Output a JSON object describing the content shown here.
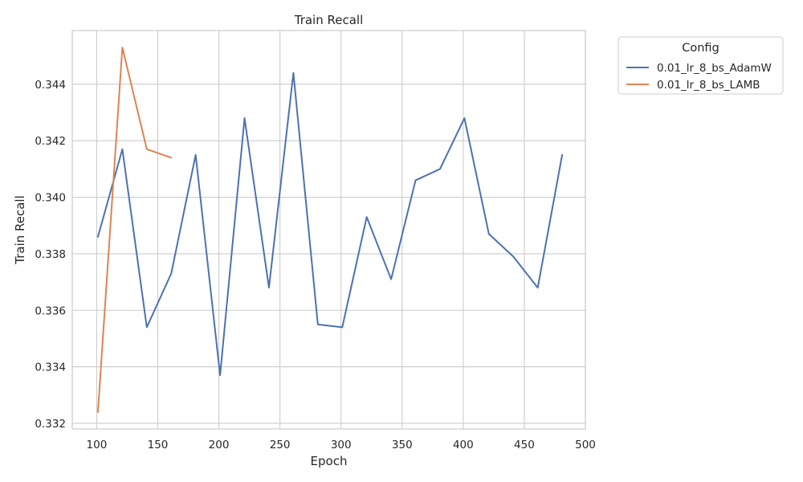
{
  "chart_data": {
    "type": "line",
    "title": "Train Recall",
    "xlabel": "Epoch",
    "ylabel": "Train Recall",
    "xlim": [
      80,
      500
    ],
    "ylim": [
      0.3318,
      0.3459
    ],
    "xticks": [
      100,
      150,
      200,
      250,
      300,
      350,
      400,
      450,
      500
    ],
    "yticks": [
      0.332,
      0.334,
      0.336,
      0.338,
      0.34,
      0.342,
      0.344
    ],
    "ytick_labels": [
      "0.332",
      "0.334",
      "0.336",
      "0.338",
      "0.340",
      "0.342",
      "0.344"
    ],
    "grid": true,
    "legend": {
      "title": "Config",
      "placement": "outside-top-right"
    },
    "series": [
      {
        "name": "0.01_lr_8_bs_AdamW",
        "color": "#4c72b0",
        "x": [
          101,
          121,
          141,
          161,
          181,
          201,
          221,
          241,
          261,
          281,
          301,
          321,
          341,
          361,
          381,
          401,
          421,
          441,
          461,
          481
        ],
        "values": [
          0.3386,
          0.3417,
          0.3354,
          0.3373,
          0.3415,
          0.3337,
          0.3428,
          0.3368,
          0.3444,
          0.3355,
          0.3354,
          0.3393,
          0.3371,
          0.3406,
          0.341,
          0.3428,
          0.3387,
          0.3379,
          0.3368,
          0.3415
        ]
      },
      {
        "name": "0.01_lr_8_bs_LAMB",
        "color": "#dd8452",
        "x": [
          101,
          121,
          141,
          161
        ],
        "values": [
          0.3324,
          0.3453,
          0.3417,
          0.3414
        ]
      }
    ]
  }
}
